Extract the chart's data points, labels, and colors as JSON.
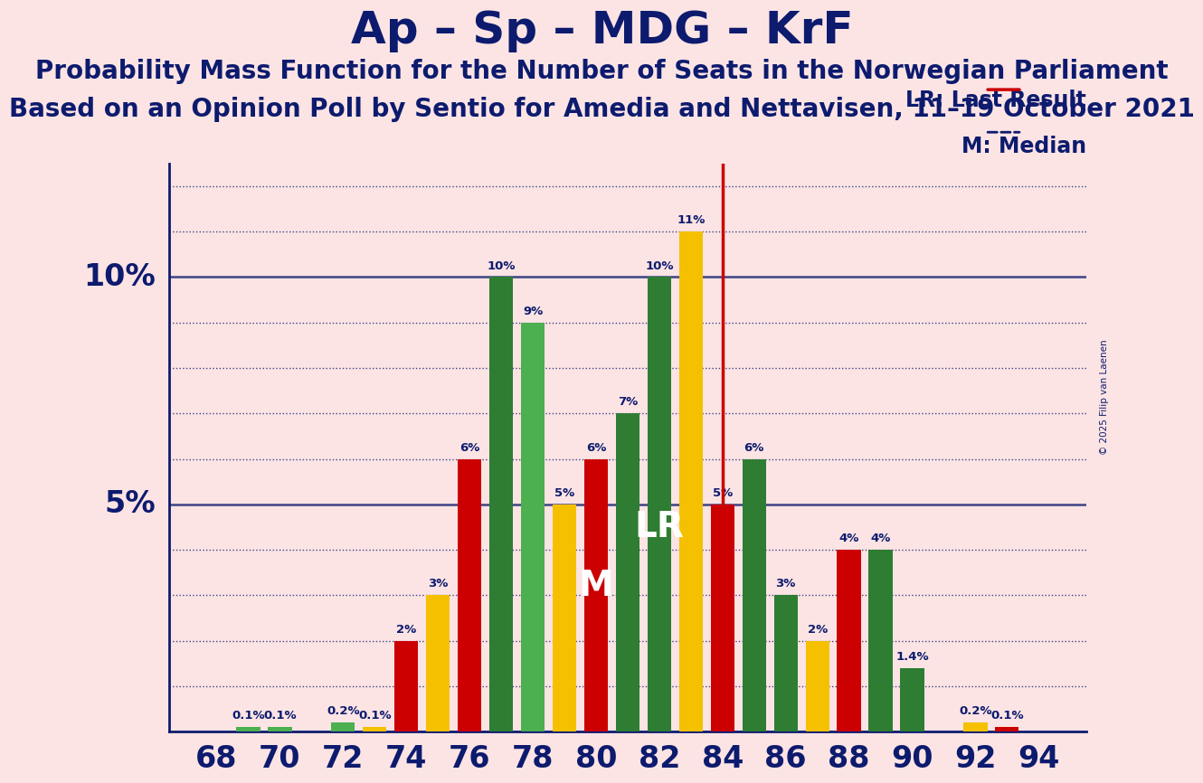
{
  "title": "Ap – Sp – MDG – KrF",
  "subtitle1": "Probability Mass Function for the Number of Seats in the Norwegian Parliament",
  "subtitle2": "Based on an Opinion Poll by Sentio for Amedia and Nettavisen, 11–19 October 2021",
  "copyright": "© 2025 Filip van Laenen",
  "background_color": "#fce4e4",
  "title_color": "#0d1b6e",
  "title_fontsize": 36,
  "subtitle_fontsize": 20,
  "grid_color": "#0d1b6e",
  "lr_line_color": "#cc0000",
  "lr_label": "LR",
  "median_label": "M",
  "lr_x": 84,
  "median_x": 81,
  "legend_lr": "LR: Last Result",
  "legend_m": "M: Median",
  "seats": [
    68,
    69,
    70,
    71,
    72,
    73,
    74,
    75,
    76,
    77,
    78,
    79,
    80,
    81,
    82,
    83,
    84,
    85,
    86,
    87,
    88,
    89,
    90,
    91,
    92,
    93,
    94
  ],
  "probabilities": [
    0.0,
    0.1,
    0.1,
    0.0,
    0.2,
    0.1,
    2.0,
    3.0,
    6.0,
    10.0,
    9.0,
    5.0,
    6.0,
    7.0,
    10.0,
    11.0,
    5.0,
    6.0,
    3.0,
    2.0,
    4.0,
    4.0,
    1.4,
    0.0,
    0.2,
    0.1,
    0.0
  ],
  "bar_colors": [
    "#2e7d32",
    "#4caf50",
    "#4caf50",
    "#f5c000",
    "#4caf50",
    "#f5c000",
    "#cc0000",
    "#f5c000",
    "#cc0000",
    "#2e7d32",
    "#4caf50",
    "#f5c000",
    "#cc0000",
    "#2e7d32",
    "#2e7d32",
    "#f5c000",
    "#cc0000",
    "#2e7d32",
    "#2e7d32",
    "#f5c000",
    "#cc0000",
    "#2e7d32",
    "#2e7d32",
    "#f5c000",
    "#f5c000",
    "#cc0000",
    "#2e7d32"
  ],
  "ylim": [
    0,
    12.5
  ],
  "xticks": [
    68,
    70,
    72,
    74,
    76,
    78,
    80,
    82,
    84,
    86,
    88,
    90,
    92,
    94
  ],
  "bar_width": 0.75,
  "ylabel_5_pos": 5,
  "ylabel_10_pos": 10
}
